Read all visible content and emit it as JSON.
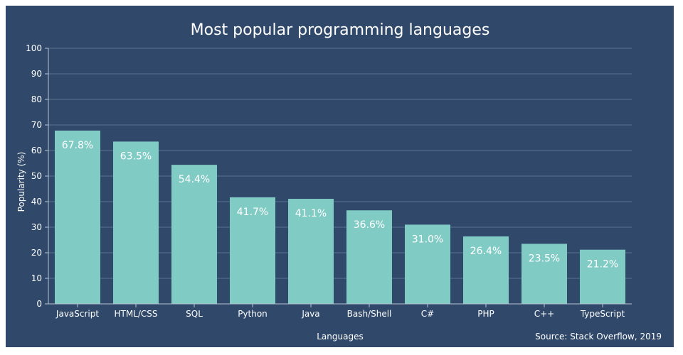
{
  "chart_data": {
    "type": "bar",
    "title": "Most popular programming languages",
    "xlabel": "Languages",
    "ylabel": "Popularity (%)",
    "ylim": [
      0,
      100
    ],
    "yticks": [
      0,
      10,
      20,
      30,
      40,
      50,
      60,
      70,
      80,
      90,
      100
    ],
    "grid": true,
    "categories": [
      "JavaScript",
      "HTML/CSS",
      "SQL",
      "Python",
      "Java",
      "Bash/Shell",
      "C#",
      "PHP",
      "C++",
      "TypeScript"
    ],
    "values": [
      67.8,
      63.5,
      54.4,
      41.7,
      41.1,
      36.6,
      31.0,
      26.4,
      23.5,
      21.2
    ],
    "value_labels": [
      "67.8%",
      "63.5%",
      "54.4%",
      "41.7%",
      "41.1%",
      "36.6%",
      "31.0%",
      "26.4%",
      "23.5%",
      "21.2%"
    ],
    "source": "Source: Stack Overflow, 2019",
    "colors": {
      "background": "#30496b",
      "bar": "#80cbc4",
      "grid": "#5a7391",
      "text": "#ffffff"
    }
  }
}
